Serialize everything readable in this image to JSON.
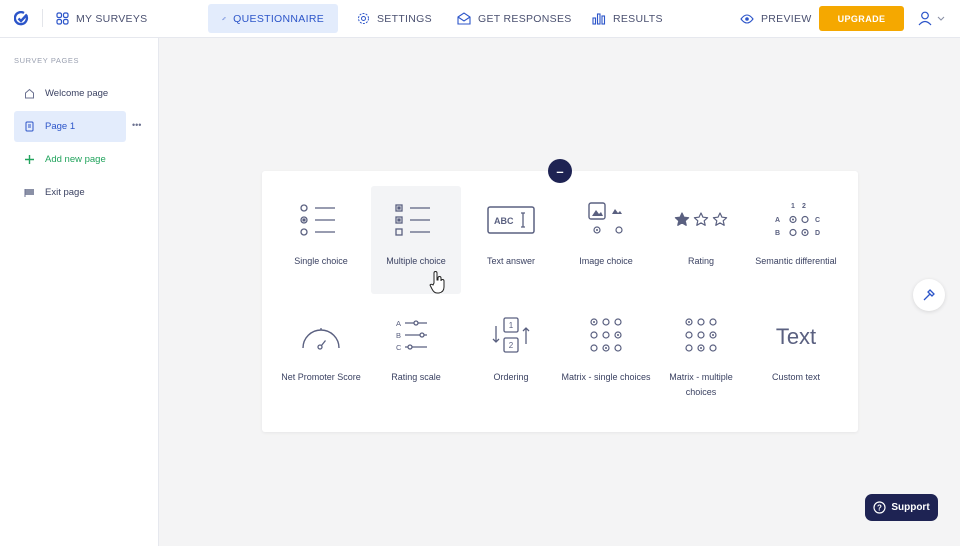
{
  "header": {
    "my_surveys": "MY SURVEYS",
    "tabs": [
      {
        "label": "QUESTIONNAIRE",
        "active": true
      },
      {
        "label": "SETTINGS"
      },
      {
        "label": "GET RESPONSES"
      },
      {
        "label": "RESULTS"
      }
    ],
    "preview": "PREVIEW",
    "upgrade": "UPGRADE"
  },
  "sidebar": {
    "title": "SURVEY PAGES",
    "items": [
      {
        "label": "Welcome page",
        "icon": "home-icon"
      },
      {
        "label": "Page 1",
        "icon": "page-icon",
        "active": true
      },
      {
        "label": "Add new page",
        "icon": "plus-icon"
      },
      {
        "label": "Exit page",
        "icon": "flag-icon"
      }
    ],
    "more": "•••"
  },
  "question_types": [
    {
      "label": "Single choice"
    },
    {
      "label": "Multiple choice",
      "hovered": true
    },
    {
      "label": "Text answer",
      "icon_text": "ABC"
    },
    {
      "label": "Image choice"
    },
    {
      "label": "Rating"
    },
    {
      "label": "Semantic differential",
      "icon_text": [
        "1",
        "2",
        "A",
        "C",
        "B",
        "D"
      ]
    },
    {
      "label": "Net Promoter Score"
    },
    {
      "label": "Rating scale",
      "icon_text": [
        "A",
        "B",
        "C"
      ]
    },
    {
      "label": "Ordering",
      "icon_text": [
        "1",
        "2"
      ]
    },
    {
      "label": "Matrix - single choices"
    },
    {
      "label": "Matrix - multiple choices"
    },
    {
      "label": "Custom text",
      "icon_text": "Text"
    }
  ],
  "collapse_button": "–",
  "support": "Support",
  "colors": {
    "accent": "#2c55c9",
    "navy": "#1e2353",
    "upgrade": "#f5a800",
    "add": "#22a45d"
  }
}
